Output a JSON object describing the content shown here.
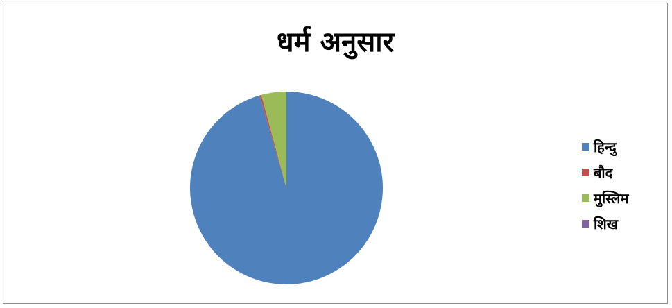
{
  "chart_data": {
    "type": "pie",
    "title": "धर्म अनुसार",
    "categories": [
      "हिन्दु",
      "बौद",
      "मुस्लिम",
      "शिख"
    ],
    "values": [
      95.5,
      0.3,
      4.2,
      0.0
    ],
    "colors": [
      "#4f81bd",
      "#c0504d",
      "#9bbb59",
      "#8064a2"
    ],
    "legend_position": "right"
  }
}
